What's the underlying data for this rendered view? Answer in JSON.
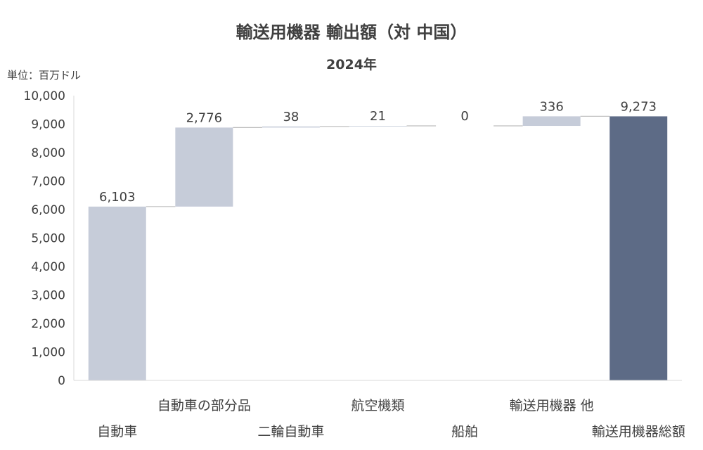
{
  "chart_data": {
    "type": "bar",
    "subtype": "waterfall",
    "title": "輸送用機器 輸出額（対 中国）",
    "subtitle": "2024年",
    "unit_label": "単位：百万ドル",
    "categories": [
      "自動車",
      "自動車の部分品",
      "二輪自動車",
      "航空機類",
      "船舶",
      "輸送用機器 他",
      "輸送用機器総額"
    ],
    "values": [
      6103,
      2776,
      38,
      21,
      0,
      336,
      9273
    ],
    "data_labels": [
      "6,103",
      "2,776",
      "38",
      "21",
      "0",
      "336",
      "9,273"
    ],
    "total_index": 6,
    "ylim": [
      0,
      10000
    ],
    "yticks": [
      0,
      1000,
      2000,
      3000,
      4000,
      5000,
      6000,
      7000,
      8000,
      9000,
      10000
    ],
    "ytick_labels": [
      "0",
      "1,000",
      "2,000",
      "3,000",
      "4,000",
      "5,000",
      "6,000",
      "7,000",
      "8,000",
      "9,000",
      "10,000"
    ],
    "grid": false,
    "legend": "none",
    "colors": {
      "increment": "#c6ccd9",
      "total": "#5d6b86",
      "connector": "#bfbfbf",
      "axis": "#d9d9d9",
      "text": "#404040"
    }
  }
}
